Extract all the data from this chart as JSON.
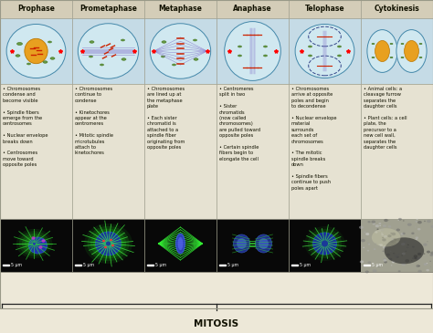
{
  "title": "MITOSIS",
  "columns": [
    "Prophase",
    "Prometaphase",
    "Metaphase",
    "Anaphase",
    "Telophase",
    "Cytokinesis"
  ],
  "header_bg": "#d4cdb8",
  "diagram_bg": "#c5dbe6",
  "text_bg": "#e6e2d2",
  "border_color": "#999988",
  "header_text_color": "#111100",
  "body_text_color": "#111100",
  "title_color": "#111100",
  "col_texts": [
    "• Chromosomes\ncondense and\nbecome visible\n\n• Spindle fibers\nemerge from the\ncentrosomes\n\n• Nuclear envelope\nbreaks down\n\n• Centrosomes\nmove toward\nopposite poles",
    "• Chromosomes\ncontinue to\ncondense\n\n• Kinetochores\nappear at the\ncentromeres\n\n• Mitotic spindle\nmicrotubules\nattach to\nkinetochores",
    "• Chromosomes\nare lined up at\nthe metaphase\nplate\n\n• Each sister\nchromatid is\nattached to a\nspindle fiber\noriginating from\nopposite poles",
    "• Centromeres\nsplit in two\n\n• Sister\nchromatids\n(now called\nchromosomes)\nare pulled toward\nopposite poles\n\n• Certain spindle\nfibers begin to\nelongate the cell",
    "• Chromosomes\narrive at opposite\npoles and begin\nto decondense\n\n• Nuclear envelope\nmaterial\nsurrounds\neach set of\nchromosomes\n\n• The mitotic\nspindle breaks\ndown\n\n• Spindle fibers\ncontinue to push\npoles apart",
    "• Animal cells: a\ncleavage furrow\nseparates the\ndaughter cells\n\n• Plant cells: a cell\nplate, the\nprecursor to a\nnew cell wall,\nseparates the\ndaughter cells"
  ],
  "micro_labels": [
    "5 μm",
    "5 μm",
    "5 μm",
    "5 μm",
    "5 μm",
    "5 μm"
  ],
  "fig_width": 4.74,
  "fig_height": 3.65,
  "dpi": 100
}
